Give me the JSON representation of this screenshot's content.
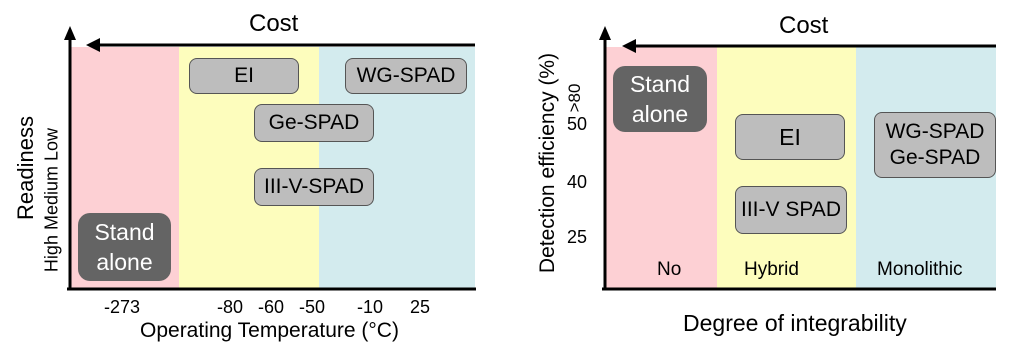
{
  "colors": {
    "red_zone": "#fdd0d4",
    "yellow_zone": "#fdfdbd",
    "teal_zone": "#d3ebee",
    "box_fill": "#bdbdbd",
    "dark_box": "#646464"
  },
  "left_panel": {
    "top_label": "Cost",
    "y_title": "Readiness",
    "y_levels": [
      "High",
      "Medium",
      "Low"
    ],
    "x_ticks": [
      "-273",
      "-80",
      "-60",
      "-50",
      "-10",
      "25"
    ],
    "x_title": "Operating Temperature (°C)",
    "boxes": {
      "ei": "EI",
      "wg_spad": "WG-SPAD",
      "ge_spad": "Ge-SPAD",
      "iiiv_spad": "III-V-SPAD"
    },
    "stand_alone": [
      "Stand",
      "alone"
    ]
  },
  "right_panel": {
    "top_label": "Cost",
    "y_title": "Detection efficiency (%)",
    "y_ticks": [
      ">80",
      "50",
      "40",
      "25"
    ],
    "x_title": "Degree of integrability",
    "zones": [
      "No",
      "Hybrid",
      "Monolithic"
    ],
    "boxes": {
      "ei": "EI",
      "iiiv_spad": "III-V SPAD",
      "wg_ge": [
        "WG-SPAD",
        "Ge-SPAD"
      ]
    },
    "stand_alone": [
      "Stand",
      "alone"
    ]
  }
}
